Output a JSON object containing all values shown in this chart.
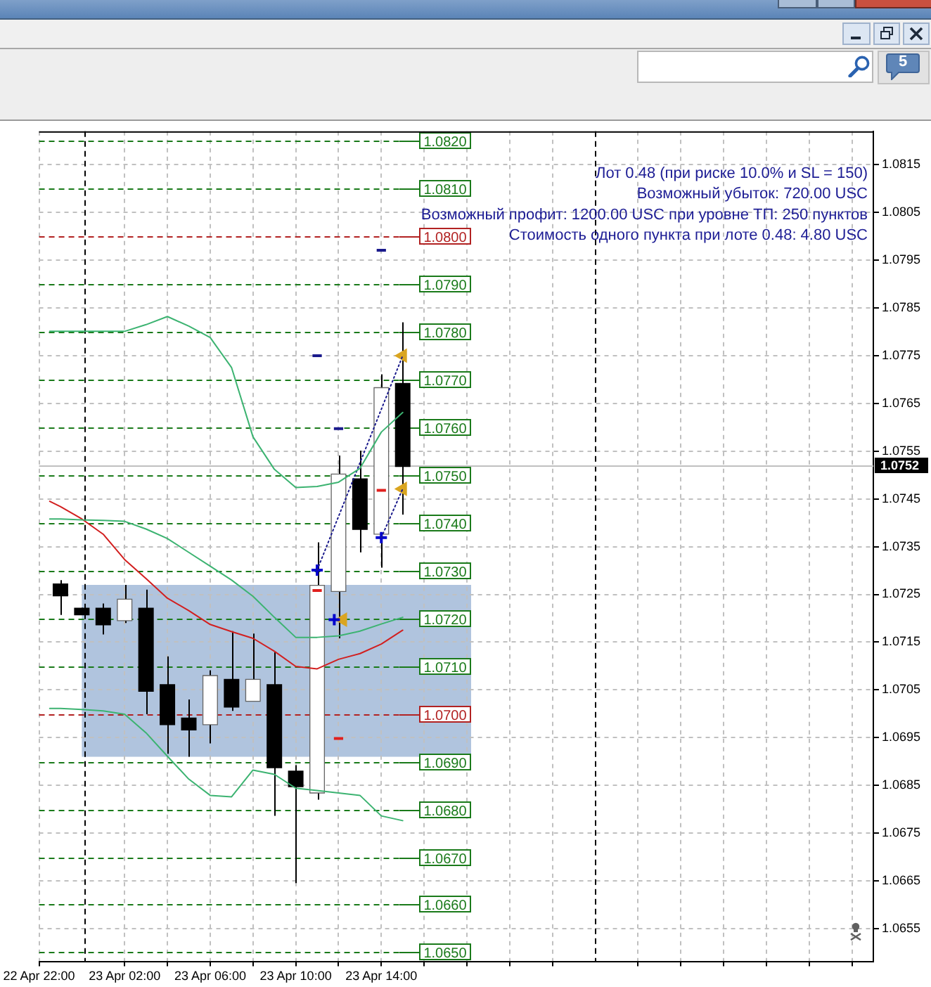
{
  "chart_data": {
    "type": "candlestick",
    "color": "#000000",
    "x": [
      "--04-22T23:00",
      "--04-23T00:00",
      "--04-23T01:00",
      "--04-23T02:00",
      "--04-23T03:00",
      "--04-23T04:00",
      "--04-23T05:00",
      "--04-23T06:00",
      "--04-23T07:00",
      "--04-23T08:00",
      "--04-23T09:00",
      "--04-23T10:00",
      "--04-23T11:00",
      "--04-23T12:00",
      "--04-23T13:00",
      "--04-23T14:00",
      "--04-23T15:00"
    ],
    "ohlc": [
      [
        1.0727,
        1.0728,
        1.07207,
        1.07249
      ],
      [
        1.07219,
        1.07222,
        1.07209,
        1.07209
      ],
      [
        1.07219,
        1.07231,
        1.07166,
        1.07188
      ],
      [
        1.07197,
        1.0727,
        1.0719,
        1.07238
      ],
      [
        1.07219,
        1.0726,
        1.06999,
        1.07049
      ],
      [
        1.07059,
        1.0712,
        1.06916,
        1.06979
      ],
      [
        1.06989,
        1.0703,
        1.0691,
        1.06968
      ],
      [
        1.06979,
        1.07091,
        1.06938,
        1.07078
      ],
      [
        1.0707,
        1.07173,
        1.07006,
        1.07016
      ],
      [
        1.07028,
        1.07168,
        1.07028,
        1.0707
      ],
      [
        1.07059,
        1.07129,
        1.06786,
        1.06889
      ],
      [
        1.06878,
        1.06892,
        1.06645,
        1.06849
      ],
      [
        1.06836,
        1.07359,
        1.0682,
        1.07267
      ],
      [
        1.07258,
        1.07541,
        1.07158,
        1.075
      ],
      [
        1.0749,
        1.07551,
        1.07338,
        1.07388
      ],
      [
        1.07378,
        1.07711,
        1.07306,
        1.07681
      ],
      [
        1.0769,
        1.0782,
        1.07417,
        1.0752
      ]
    ],
    "colors": [
      "#000000",
      "#000000",
      "#000000",
      "#666666",
      "#000000",
      "#000000",
      "#000000",
      "#666666",
      "#000000",
      "#666666",
      "#000000",
      "#000000",
      "#666666",
      "#666666",
      "#000000",
      "#666666",
      "#000000"
    ],
    "series": [
      {
        "type": "line",
        "color": "#3cb371",
        "x": [
          "--04-22T22:30",
          "--04-22T23:00",
          "--04-23T00:00",
          "--04-23T01:00",
          "--04-23T02:00",
          "--04-23T03:00",
          "--04-23T04:00",
          "--04-23T05:00",
          "--04-23T06:00",
          "--04-23T07:00",
          "--04-23T08:00",
          "--04-23T09:00",
          "--04-23T10:00",
          "--04-23T11:00",
          "--04-23T12:00",
          "--04-23T13:00",
          "--04-23T14:00",
          "--04-23T15:00"
        ],
        "values": [
          1.07801,
          1.07801,
          1.07801,
          1.07801,
          1.07801,
          1.07815,
          1.07832,
          1.07812,
          1.07788,
          1.07725,
          1.0758,
          1.07512,
          1.07474,
          1.07476,
          1.07485,
          1.07514,
          1.0759,
          1.07631
        ]
      },
      {
        "type": "line",
        "color": "#3cb371",
        "x": [
          "--04-22T22:30",
          "--04-22T23:00",
          "--04-23T00:00",
          "--04-23T01:00",
          "--04-23T02:00",
          "--04-23T03:00",
          "--04-23T04:00",
          "--04-23T05:00",
          "--04-23T06:00",
          "--04-23T07:00",
          "--04-23T08:00",
          "--04-23T09:00",
          "--04-23T10:00",
          "--04-23T11:00",
          "--04-23T12:00",
          "--04-23T13:00",
          "--04-23T14:00",
          "--04-23T15:00"
        ],
        "values": [
          1.07408,
          1.07408,
          1.07406,
          1.07405,
          1.07403,
          1.07387,
          1.07367,
          1.07338,
          1.07309,
          1.0728,
          1.07246,
          1.07202,
          1.0716,
          1.0716,
          1.07163,
          1.07173,
          1.07188,
          1.07202
        ]
      },
      {
        "type": "line",
        "color": "#3cb371",
        "x": [
          "--04-22T22:30",
          "--04-22T23:00",
          "--04-23T00:00",
          "--04-23T01:00",
          "--04-23T02:00",
          "--04-23T03:00",
          "--04-23T04:00",
          "--04-23T05:00",
          "--04-23T06:00",
          "--04-23T07:00",
          "--04-23T08:00",
          "--04-23T09:00",
          "--04-23T10:00",
          "--04-23T11:00",
          "--04-23T12:00",
          "--04-23T13:00",
          "--04-23T14:00",
          "--04-23T15:00"
        ],
        "values": [
          1.07011,
          1.07011,
          1.07009,
          1.07006,
          1.06999,
          1.0696,
          1.06911,
          1.06863,
          1.06829,
          1.06826,
          1.06882,
          1.06873,
          1.06844,
          1.06839,
          1.06834,
          1.06829,
          1.06786,
          1.06776
        ]
      },
      {
        "type": "line",
        "color": "#d21f1f",
        "x": [
          "--04-22T22:30",
          "--04-22T23:00",
          "--04-23T00:00",
          "--04-23T01:00",
          "--04-23T02:00",
          "--04-23T03:00",
          "--04-23T04:00",
          "--04-23T05:00",
          "--04-23T06:00",
          "--04-23T07:00",
          "--04-23T08:00",
          "--04-23T09:00",
          "--04-23T10:00",
          "--04-23T11:00",
          "--04-23T12:00",
          "--04-23T13:00",
          "--04-23T14:00",
          "--04-23T15:00"
        ],
        "values": [
          1.07445,
          1.07434,
          1.07408,
          1.07376,
          1.07323,
          1.07283,
          1.07242,
          1.07216,
          1.07187,
          1.07172,
          1.07158,
          1.07131,
          1.07099,
          1.07094,
          1.07114,
          1.07126,
          1.07146,
          1.07175
        ]
      },
      {
        "type": "line",
        "color": "#1a1a8c",
        "line_style": "dotted",
        "x": [
          "--04-23T11:00",
          "--04-23T15:00"
        ],
        "values": [
          1.07301,
          1.0775
        ]
      },
      {
        "type": "line",
        "color": "#1a1a8c",
        "line_style": "dotted",
        "x": [
          "--04-23T14:00",
          "--04-23T15:00"
        ],
        "values": [
          1.07369,
          1.07471
        ]
      },
      {
        "type": "scatter",
        "color": "#0000cd",
        "marker": "cross",
        "x": [
          "--04-23T11:00",
          "--04-23T11:48",
          "--04-23T14:00"
        ],
        "values": [
          1.07301,
          1.07197,
          1.07369
        ]
      },
      {
        "type": "scatter",
        "color": "#daa520",
        "marker": "triangle",
        "x": [
          "--04-23T12:12",
          "--04-23T15:00",
          "--04-23T15:00"
        ],
        "values": [
          1.07197,
          1.0775,
          1.07471
        ]
      },
      {
        "type": "line",
        "color": "#1a1a8c",
        "x": [
          "--04-23T10:47",
          "--04-23T11:13",
          "--04-23T11:30",
          "--04-23T11:47",
          "--04-23T12:13",
          "--04-23T13:00",
          "--04-23T13:47",
          "--04-23T14:13"
        ],
        "values": [
          1.0775,
          1.0775,
          null,
          1.07597,
          1.07597,
          null,
          1.07971,
          1.07971
        ]
      },
      {
        "type": "line",
        "color": "#e0201e",
        "x": [
          "--04-23T10:47",
          "--04-23T11:13",
          "--04-23T11:30",
          "--04-23T11:47",
          "--04-23T12:13",
          "--04-23T13:00",
          "--04-23T13:47",
          "--04-23T14:13"
        ],
        "values": [
          1.07258,
          1.07258,
          null,
          1.06948,
          1.06948,
          null,
          1.07468,
          1.07468
        ]
      }
    ],
    "xlim": [
      "--04-22T22:00",
      "--04-24T13:00"
    ],
    "xticks": [
      {
        "value": "--04-22T22:00",
        "label": "22 Apr 22:00"
      },
      {
        "value": "--04-23T02:00",
        "label": "23 Apr 02:00"
      },
      {
        "value": "--04-23T04:00",
        "label": null
      },
      {
        "value": "--04-23T06:00",
        "label": "23 Apr 06:00"
      },
      {
        "value": "--04-23T08:00",
        "label": null
      },
      {
        "value": "--04-23T10:00",
        "label": "23 Apr 10:00"
      },
      {
        "value": "--04-23T12:00",
        "label": null
      },
      {
        "value": "--04-23T14:00",
        "label": "23 Apr 14:00"
      },
      {
        "value": "--04-23T16:00",
        "label": null
      },
      {
        "value": "--04-23T18:00",
        "label": null
      },
      {
        "value": "--04-23T20:00",
        "label": null
      },
      {
        "value": "--04-23T22:00",
        "label": null
      },
      {
        "value": "--04-24T02:00",
        "label": null
      },
      {
        "value": "--04-24T04:00",
        "label": null
      },
      {
        "value": "--04-24T06:00",
        "label": null
      },
      {
        "value": "--04-24T08:00",
        "label": null
      },
      {
        "value": "--04-24T10:00",
        "label": null
      },
      {
        "value": "--04-24T12:00",
        "label": null
      }
    ],
    "ylim": [
      1.0648,
      1.0822
    ],
    "yticks": [
      1.0655,
      1.0665,
      1.0675,
      1.0685,
      1.0695,
      1.0705,
      1.0715,
      1.0725,
      1.0735,
      1.0745,
      1.0755,
      1.0765,
      1.0775,
      1.0785,
      1.0795,
      1.0805,
      1.0815
    ],
    "grid": true,
    "bands": [
      {
        "axis": "y",
        "from": 1.0691,
        "to": 1.0727,
        "color": "#b0c4de"
      }
    ],
    "ref_lines": [
      {
        "axis": "x",
        "value": "--04-23T00:00",
        "color": "#000000",
        "line_style": "dashed"
      },
      {
        "axis": "x",
        "value": "--04-24T00:00",
        "color": "#000000",
        "line_style": "dashed"
      },
      {
        "axis": "y",
        "value": 1.0752,
        "label": "1.0752",
        "color": "#c0c0c0",
        "line_style": "solid"
      },
      {
        "axis": "y",
        "value": 1.082,
        "label": "1.0820",
        "color": "#1a7a1a",
        "line_style": "dashed"
      },
      {
        "axis": "y",
        "value": 1.081,
        "label": "1.0810",
        "color": "#1a7a1a",
        "line_style": "dashed"
      },
      {
        "axis": "y",
        "value": 1.08,
        "label": "1.0800",
        "color": "#b22222",
        "line_style": "dashed"
      },
      {
        "axis": "y",
        "value": 1.079,
        "label": "1.0790",
        "color": "#1a7a1a",
        "line_style": "dashed"
      },
      {
        "axis": "y",
        "value": 1.078,
        "label": "1.0780",
        "color": "#1a7a1a",
        "line_style": "dashed"
      },
      {
        "axis": "y",
        "value": 1.077,
        "label": "1.0770",
        "color": "#1a7a1a",
        "line_style": "dashed"
      },
      {
        "axis": "y",
        "value": 1.076,
        "label": "1.0760",
        "color": "#1a7a1a",
        "line_style": "dashed"
      },
      {
        "axis": "y",
        "value": 1.075,
        "label": "1.0750",
        "color": "#1a7a1a",
        "line_style": "dashed"
      },
      {
        "axis": "y",
        "value": 1.074,
        "label": "1.0740",
        "color": "#1a7a1a",
        "line_style": "dashed"
      },
      {
        "axis": "y",
        "value": 1.073,
        "label": "1.0730",
        "color": "#1a7a1a",
        "line_style": "dashed"
      },
      {
        "axis": "y",
        "value": 1.072,
        "label": "1.0720",
        "color": "#1a7a1a",
        "line_style": "dashed"
      },
      {
        "axis": "y",
        "value": 1.071,
        "label": "1.0710",
        "color": "#1a7a1a",
        "line_style": "dashed"
      },
      {
        "axis": "y",
        "value": 1.07,
        "label": "1.0700",
        "color": "#b22222",
        "line_style": "dashed"
      },
      {
        "axis": "y",
        "value": 1.069,
        "label": "1.0690",
        "color": "#1a7a1a",
        "line_style": "dashed"
      },
      {
        "axis": "y",
        "value": 1.068,
        "label": "1.0680",
        "color": "#1a7a1a",
        "line_style": "dashed"
      },
      {
        "axis": "y",
        "value": 1.067,
        "label": "1.0670",
        "color": "#1a7a1a",
        "line_style": "dashed"
      },
      {
        "axis": "y",
        "value": 1.066,
        "label": "1.0660",
        "color": "#1a7a1a",
        "line_style": "dashed"
      },
      {
        "axis": "y",
        "value": 1.065,
        "label": "1.0650",
        "color": "#1a7a1a",
        "line_style": "dashed"
      }
    ],
    "annotations": [
      "Лот 0.48 (при риске 10.0% и SL = 150)",
      "Возможный убыток: 720.00 USC",
      "Возможный профит: 1200.00 USC при уровне ТП: 250 пунктов",
      "Стоимость одного пункта при лоте 0.48: 4.80 USC",
      "5"
    ]
  }
}
